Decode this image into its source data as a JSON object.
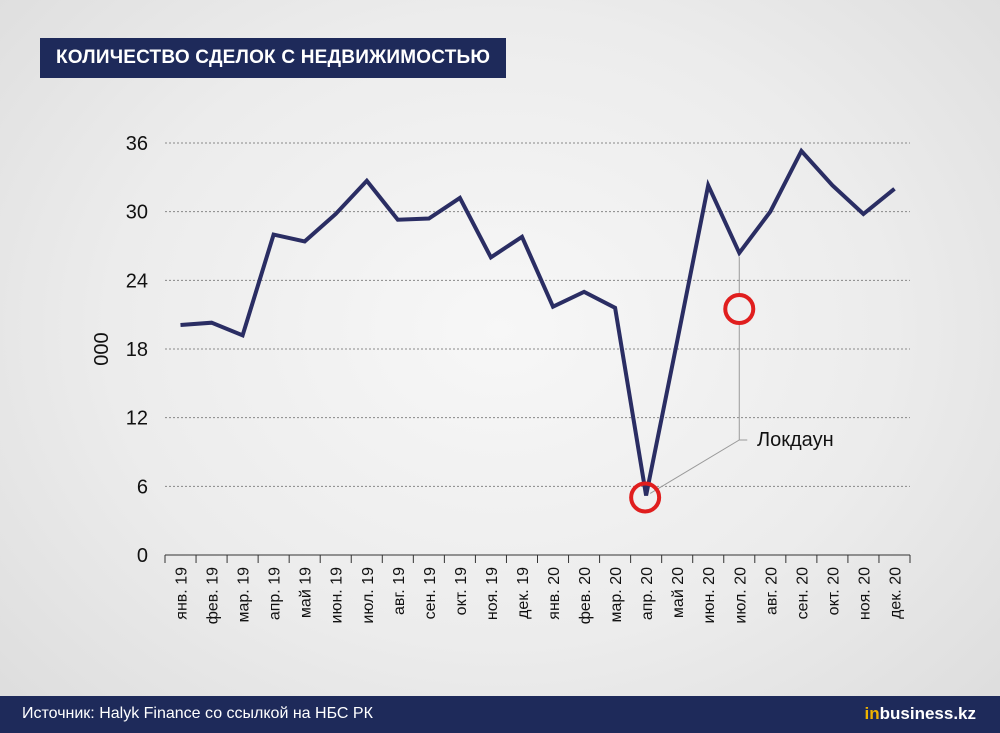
{
  "chart_data": {
    "type": "line",
    "title": "КОЛИЧЕСТВО СДЕЛОК С НЕДВИЖИМОСТЬЮ",
    "ylabel": "000",
    "xlabel": "",
    "ylim": [
      0,
      36
    ],
    "yticks": [
      0,
      6,
      12,
      18,
      24,
      30,
      36
    ],
    "grid": true,
    "categories": [
      "янв. 19",
      "фев. 19",
      "мар. 19",
      "апр. 19",
      "май 19",
      "июн. 19",
      "июл. 19",
      "авг. 19",
      "сен. 19",
      "окт. 19",
      "ноя. 19",
      "дек. 19",
      "янв. 20",
      "фев. 20",
      "мар. 20",
      "апр. 20",
      "май 20",
      "июн. 20",
      "июл. 20",
      "авг. 20",
      "сен. 20",
      "окт. 20",
      "ноя. 20",
      "дек. 20"
    ],
    "series": [
      {
        "values": [
          20.1,
          20.3,
          19.2,
          28.0,
          27.4,
          29.8,
          32.7,
          29.3,
          29.4,
          31.2,
          26.0,
          27.8,
          21.7,
          23.0,
          21.6,
          5.2,
          18.7,
          32.3,
          26.4,
          30.0,
          35.3,
          32.3,
          29.8,
          32.0
        ]
      }
    ],
    "annotations": [
      {
        "text": "Локдаун",
        "points": [
          "апр. 20",
          "июл. 20"
        ]
      }
    ],
    "colors": {
      "line": "#2a2d63",
      "grid": "#888888",
      "marker": "#e01e1e",
      "leader": "#9a9a9a"
    }
  },
  "footer": {
    "source": "Источник: Halyk Finance со ссылкой на НБС РК",
    "brand_prefix": "in",
    "brand_suffix": "business.kz"
  },
  "colors": {
    "header_bg": "#1e2a5a",
    "brand_accent": "#f0b400"
  }
}
